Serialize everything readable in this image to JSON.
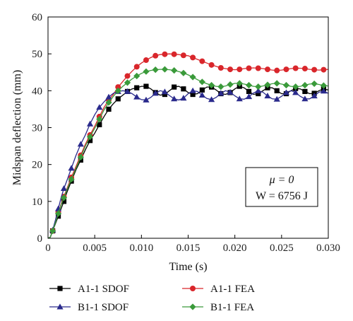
{
  "chart_data": {
    "type": "line",
    "xlabel": "Time (s)",
    "ylabel": "Midspan deflection (mm)",
    "xlim": [
      0,
      0.03
    ],
    "ylim": [
      0,
      60
    ],
    "x_ticks": [
      "0",
      "0.005",
      "0.010",
      "0.015",
      "0.020",
      "0.025",
      "0.030"
    ],
    "y_ticks": [
      "0",
      "10",
      "20",
      "30",
      "40",
      "50",
      "60"
    ],
    "grid": false,
    "legend_position": "bottom",
    "annotation": {
      "line1": "μ = 0",
      "line2": "W = 6756 J"
    },
    "series": [
      {
        "name": "A1-1 SDOF",
        "color": "#000000",
        "marker": "square",
        "x": [
          0,
          0.00025,
          0.0005,
          0.0008,
          0.0011,
          0.0014,
          0.0017,
          0.002,
          0.0025,
          0.003,
          0.0035,
          0.004,
          0.0045,
          0.005,
          0.0055,
          0.006,
          0.0065,
          0.007,
          0.0075,
          0.008,
          0.0085,
          0.009,
          0.0095,
          0.01,
          0.0105,
          0.011,
          0.0115,
          0.012,
          0.0125,
          0.013,
          0.0135,
          0.014,
          0.0145,
          0.015,
          0.0155,
          0.016,
          0.0165,
          0.017,
          0.0175,
          0.018,
          0.0185,
          0.019,
          0.0195,
          0.02,
          0.0205,
          0.021,
          0.0215,
          0.022,
          0.0225,
          0.023,
          0.0235,
          0.024,
          0.0245,
          0.025,
          0.0255,
          0.026,
          0.0265,
          0.027,
          0.0275,
          0.028,
          0.0285,
          0.029,
          0.0295,
          0.03
        ],
        "y": [
          0,
          0.3,
          2,
          4,
          6,
          8,
          10,
          12.3,
          15.5,
          18.6,
          21.2,
          24,
          26.5,
          28.5,
          30.8,
          33,
          35,
          36.5,
          37.8,
          38.8,
          39.8,
          40.5,
          40.8,
          41.2,
          41.2,
          40.5,
          39.5,
          38.8,
          39,
          40,
          41,
          41.2,
          40.5,
          39.5,
          39,
          39.2,
          40.2,
          41,
          41,
          40.2,
          39.2,
          39,
          39.5,
          40.5,
          41.2,
          40.8,
          39.8,
          39,
          39.2,
          40,
          40.8,
          40.8,
          40,
          39.2,
          39.2,
          40,
          40.6,
          40.5,
          39.8,
          39.2,
          39.3,
          40,
          40.5,
          40.2
        ]
      },
      {
        "name": "A1-1 FEA",
        "color": "#d9262b",
        "marker": "circle",
        "x": [
          0,
          0.00025,
          0.0005,
          0.0008,
          0.0011,
          0.0014,
          0.0017,
          0.002,
          0.0025,
          0.003,
          0.0035,
          0.004,
          0.0045,
          0.005,
          0.0055,
          0.006,
          0.0065,
          0.007,
          0.0075,
          0.008,
          0.0085,
          0.009,
          0.0095,
          0.01,
          0.0105,
          0.011,
          0.0115,
          0.012,
          0.0125,
          0.013,
          0.0135,
          0.014,
          0.0145,
          0.015,
          0.0155,
          0.016,
          0.0165,
          0.017,
          0.0175,
          0.018,
          0.0185,
          0.019,
          0.0195,
          0.02,
          0.0205,
          0.021,
          0.0215,
          0.022,
          0.0225,
          0.023,
          0.0235,
          0.024,
          0.0245,
          0.025,
          0.0255,
          0.026,
          0.0265,
          0.027,
          0.0275,
          0.028,
          0.0285,
          0.029,
          0.0295,
          0.03
        ],
        "y": [
          0,
          0.3,
          2,
          4.5,
          7,
          9.2,
          11.3,
          13.3,
          16.5,
          19.5,
          22.5,
          25.5,
          28,
          30.4,
          33,
          35.5,
          37.5,
          39,
          41,
          42.5,
          44,
          45.3,
          46.5,
          47.5,
          48.3,
          49,
          49.5,
          49.8,
          49.9,
          50,
          49.9,
          49.8,
          49.6,
          49.5,
          49,
          48.5,
          48,
          47.5,
          47,
          46.6,
          46.2,
          46,
          45.8,
          45.7,
          45.8,
          46,
          46.1,
          46.2,
          46.1,
          46,
          45.8,
          45.6,
          45.5,
          45.6,
          45.8,
          46,
          46.1,
          46.1,
          46,
          45.8,
          45.7,
          45.6,
          45.7,
          45.8
        ]
      },
      {
        "name": "B1-1 SDOF",
        "color": "#2a2a8c",
        "marker": "triangle",
        "x": [
          0,
          0.00025,
          0.0005,
          0.0008,
          0.0011,
          0.0014,
          0.0017,
          0.002,
          0.0025,
          0.003,
          0.0035,
          0.004,
          0.0045,
          0.005,
          0.0055,
          0.006,
          0.0065,
          0.007,
          0.0075,
          0.008,
          0.0085,
          0.009,
          0.0095,
          0.01,
          0.0105,
          0.011,
          0.0115,
          0.012,
          0.0125,
          0.013,
          0.0135,
          0.014,
          0.0145,
          0.015,
          0.0155,
          0.016,
          0.0165,
          0.017,
          0.0175,
          0.018,
          0.0185,
          0.019,
          0.0195,
          0.02,
          0.0205,
          0.021,
          0.0215,
          0.022,
          0.0225,
          0.023,
          0.0235,
          0.024,
          0.0245,
          0.025,
          0.0255,
          0.026,
          0.0265,
          0.027,
          0.0275,
          0.028,
          0.0285,
          0.029,
          0.0295,
          0.03
        ],
        "y": [
          0,
          0.3,
          2.2,
          5,
          8,
          11,
          13.5,
          15.5,
          19,
          22.5,
          25.5,
          28,
          31,
          33.5,
          35.5,
          37,
          38.3,
          39.3,
          39.8,
          40,
          39.8,
          39.2,
          38.3,
          37.6,
          37.5,
          38.2,
          39.3,
          40,
          39.7,
          38.7,
          37.8,
          37.5,
          38,
          39.2,
          40,
          39.8,
          38.8,
          37.9,
          37.6,
          38.2,
          39.3,
          40,
          39.6,
          38.6,
          37.8,
          37.7,
          38.4,
          39.4,
          40,
          39.6,
          38.6,
          37.8,
          37.7,
          38.5,
          39.5,
          40,
          39.5,
          38.5,
          37.8,
          37.8,
          38.6,
          39.6,
          39.9,
          39.3
        ]
      },
      {
        "name": "B1-1 FEA",
        "color": "#3a9a3a",
        "marker": "diamond",
        "x": [
          0,
          0.00025,
          0.0005,
          0.0008,
          0.0011,
          0.0014,
          0.0017,
          0.002,
          0.0025,
          0.003,
          0.0035,
          0.004,
          0.0045,
          0.005,
          0.0055,
          0.006,
          0.0065,
          0.007,
          0.0075,
          0.008,
          0.0085,
          0.009,
          0.0095,
          0.01,
          0.0105,
          0.011,
          0.0115,
          0.012,
          0.0125,
          0.013,
          0.0135,
          0.014,
          0.0145,
          0.015,
          0.0155,
          0.016,
          0.0165,
          0.017,
          0.0175,
          0.018,
          0.0185,
          0.019,
          0.0195,
          0.02,
          0.0205,
          0.021,
          0.0215,
          0.022,
          0.0225,
          0.023,
          0.0235,
          0.024,
          0.0245,
          0.025,
          0.0255,
          0.026,
          0.0265,
          0.027,
          0.0275,
          0.028,
          0.0285,
          0.029,
          0.0295,
          0.03
        ],
        "y": [
          0,
          0.3,
          2,
          4.3,
          6.7,
          9,
          11,
          13,
          16,
          19,
          22,
          25,
          27.5,
          29.8,
          32.3,
          34.8,
          36.8,
          38.5,
          40,
          41.2,
          42.2,
          43.2,
          44,
          44.7,
          45.2,
          45.5,
          45.7,
          45.8,
          45.8,
          45.7,
          45.5,
          45.2,
          44.8,
          44.3,
          43.7,
          43,
          42.4,
          41.9,
          41.5,
          41.2,
          41.1,
          41.3,
          41.7,
          42,
          42,
          41.8,
          41.5,
          41.2,
          41.1,
          41.3,
          41.6,
          41.9,
          42,
          41.8,
          41.5,
          41.2,
          41.1,
          41.2,
          41.5,
          41.8,
          41.9,
          41.7,
          41.4,
          41.3
        ]
      }
    ]
  }
}
